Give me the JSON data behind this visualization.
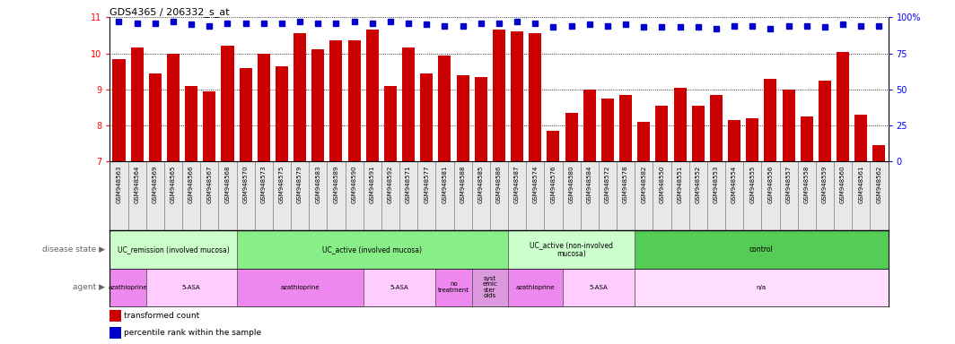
{
  "title": "GDS4365 / 206332_s_at",
  "samples": [
    "GSM948563",
    "GSM948564",
    "GSM948569",
    "GSM948565",
    "GSM948566",
    "GSM948567",
    "GSM948568",
    "GSM948570",
    "GSM948573",
    "GSM948575",
    "GSM948579",
    "GSM948583",
    "GSM948589",
    "GSM948590",
    "GSM948591",
    "GSM948592",
    "GSM948571",
    "GSM948577",
    "GSM948581",
    "GSM948588",
    "GSM948585",
    "GSM948586",
    "GSM948587",
    "GSM948574",
    "GSM948576",
    "GSM948580",
    "GSM948584",
    "GSM948572",
    "GSM948578",
    "GSM948582",
    "GSM948550",
    "GSM948551",
    "GSM948552",
    "GSM948553",
    "GSM948554",
    "GSM948555",
    "GSM948556",
    "GSM948557",
    "GSM948558",
    "GSM948559",
    "GSM948560",
    "GSM948561",
    "GSM948562"
  ],
  "bar_values": [
    9.85,
    10.15,
    9.45,
    10.0,
    9.1,
    8.95,
    10.2,
    9.6,
    10.0,
    9.65,
    10.55,
    10.1,
    10.35,
    10.35,
    10.65,
    9.1,
    10.15,
    9.45,
    9.95,
    9.4,
    9.35,
    10.65,
    10.6,
    10.55,
    7.85,
    8.35,
    9.0,
    8.75,
    8.85,
    8.1,
    8.55,
    9.05,
    8.55,
    8.85,
    8.15,
    8.2,
    9.3,
    9.0,
    8.25,
    9.25,
    10.05,
    8.3,
    7.45
  ],
  "pct_ranks": [
    97,
    96,
    96,
    97,
    95,
    94,
    96,
    96,
    96,
    96,
    97,
    96,
    96,
    97,
    96,
    97,
    96,
    95,
    94,
    94,
    96,
    96,
    97,
    96,
    93,
    94,
    95,
    94,
    95,
    93,
    93,
    93,
    93,
    92,
    94,
    94,
    92,
    94,
    94,
    93,
    95,
    94,
    94
  ],
  "ylim_left": [
    7,
    11
  ],
  "bar_color": "#cc0000",
  "dot_color": "#0000cc",
  "disease_state_groups": [
    {
      "label": "UC_remission (involved mucosa)",
      "start": 0,
      "end": 7,
      "color": "#ccffcc"
    },
    {
      "label": "UC_active (involved mucosa)",
      "start": 7,
      "end": 22,
      "color": "#88ee88"
    },
    {
      "label": "UC_active (non-involved\nmucosa)",
      "start": 22,
      "end": 29,
      "color": "#ccffcc"
    },
    {
      "label": "control",
      "start": 29,
      "end": 43,
      "color": "#55cc55"
    }
  ],
  "agent_groups": [
    {
      "label": "azathioprine",
      "start": 0,
      "end": 2,
      "color": "#ee88ee"
    },
    {
      "label": "5-ASA",
      "start": 2,
      "end": 7,
      "color": "#ffccff"
    },
    {
      "label": "azathioprine",
      "start": 7,
      "end": 14,
      "color": "#ee88ee"
    },
    {
      "label": "5-ASA",
      "start": 14,
      "end": 18,
      "color": "#ffccff"
    },
    {
      "label": "no\ntreatment",
      "start": 18,
      "end": 20,
      "color": "#ee88ee"
    },
    {
      "label": "syst\nemic\nster\noids",
      "start": 20,
      "end": 22,
      "color": "#dd99dd"
    },
    {
      "label": "azathioprine",
      "start": 22,
      "end": 25,
      "color": "#ee88ee"
    },
    {
      "label": "5-ASA",
      "start": 25,
      "end": 29,
      "color": "#ffccff"
    },
    {
      "label": "n/a",
      "start": 29,
      "end": 43,
      "color": "#ffddff"
    }
  ]
}
